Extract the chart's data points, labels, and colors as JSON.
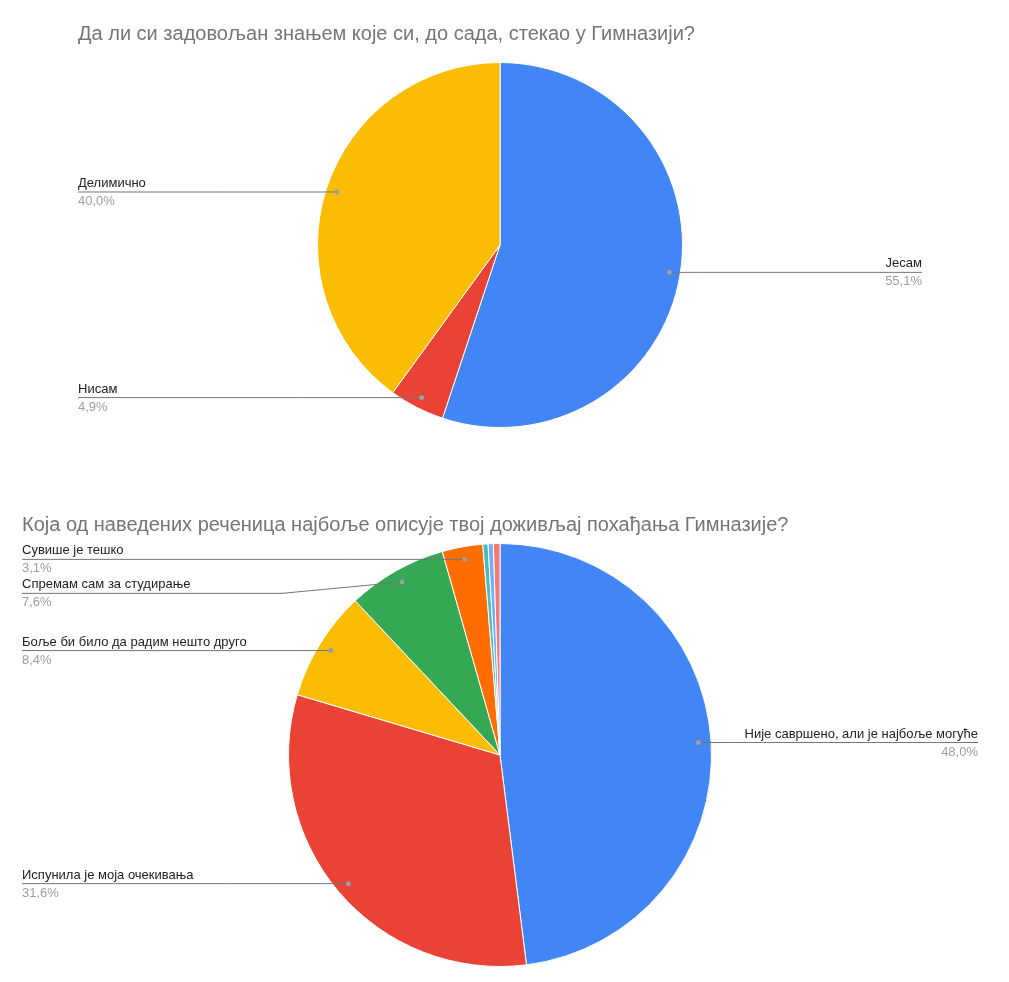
{
  "chart_data": [
    {
      "type": "pie",
      "title": "Да ли си задовољан знањем које си, до сада, стекао у Гимназији?",
      "categories": [
        "Јесам",
        "Нисам",
        "Делимично"
      ],
      "values": [
        55.1,
        4.9,
        40.0
      ],
      "colors": [
        "#4285f4",
        "#ea4335",
        "#fbbc04"
      ],
      "value_labels": [
        "55,1%",
        "4,9%",
        "40,0%"
      ]
    },
    {
      "type": "pie",
      "title": "Која од наведених реченица најбоље описује твој доживљај похађања Гимназије?",
      "categories": [
        "Није савршено, али је најбоље могуће",
        "Испунила је моја очекивања",
        "Боље би било да радим нешто друго",
        "Спремам сам за студирање",
        "Сувише је тешко",
        null,
        null,
        null
      ],
      "values": [
        48.0,
        31.6,
        8.4,
        7.6,
        3.1,
        0.4,
        0.4,
        0.5
      ],
      "colors": [
        "#4285f4",
        "#ea4335",
        "#fbbc04",
        "#34a853",
        "#ff6d01",
        "#46bdc6",
        "#7baaf7",
        "#f07b72"
      ],
      "value_labels": [
        "48,0%",
        "31,6%",
        "8,4%",
        "7,6%",
        "3,1%",
        null,
        null,
        null
      ]
    }
  ]
}
